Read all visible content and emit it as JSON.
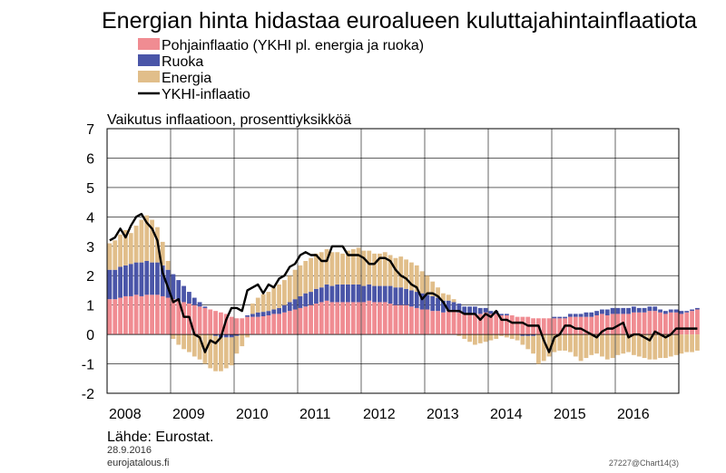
{
  "chart_data": {
    "type": "bar",
    "title": "Energian hinta hidastaa euroalueen kuluttajahintainflaatiota",
    "subtitle": "Vaikutus inflaatioon, prosenttiyksikköä",
    "ylim": [
      -2,
      7
    ],
    "yticks": [
      "7",
      "6",
      "5",
      "4",
      "3",
      "2",
      "1",
      "0",
      "-1",
      "-2"
    ],
    "xticks": [
      "2008",
      "2009",
      "2010",
      "2011",
      "2012",
      "2013",
      "2014",
      "2015",
      "2016"
    ],
    "start_year": 2008,
    "stacked": true,
    "colors": {
      "core": "#F08C92",
      "food": "#4A55A8",
      "energy": "#E1BE8A",
      "line": "#000000"
    },
    "legend": [
      {
        "name": "Pohjainflaatio (YKHI pl. energia ja ruoka)",
        "color": "#F08C92",
        "kind": "box"
      },
      {
        "name": "Ruoka",
        "color": "#4A55A8",
        "kind": "box"
      },
      {
        "name": "Energia",
        "color": "#E1BE8A",
        "kind": "box"
      },
      {
        "name": "YKHI-inflaatio",
        "color": "#000000",
        "kind": "line"
      }
    ],
    "series": {
      "core": [
        1.2,
        1.2,
        1.25,
        1.3,
        1.3,
        1.35,
        1.3,
        1.35,
        1.35,
        1.35,
        1.3,
        1.25,
        1.2,
        1.15,
        1.1,
        1.05,
        1.0,
        0.95,
        0.9,
        0.85,
        0.8,
        0.75,
        0.7,
        0.6,
        0.55,
        0.55,
        0.6,
        0.6,
        0.6,
        0.62,
        0.65,
        0.7,
        0.7,
        0.75,
        0.8,
        0.85,
        0.9,
        0.95,
        1.0,
        1.05,
        1.1,
        1.15,
        1.1,
        1.1,
        1.1,
        1.1,
        1.1,
        1.1,
        1.1,
        1.15,
        1.1,
        1.1,
        1.1,
        1.05,
        1.0,
        1.0,
        1.0,
        0.95,
        0.9,
        0.85,
        0.85,
        0.8,
        0.8,
        0.75,
        0.8,
        0.8,
        0.75,
        0.7,
        0.7,
        0.7,
        0.7,
        0.75,
        0.7,
        0.7,
        0.65,
        0.65,
        0.65,
        0.6,
        0.6,
        0.6,
        0.55,
        0.55,
        0.55,
        0.55,
        0.55,
        0.55,
        0.55,
        0.6,
        0.6,
        0.6,
        0.6,
        0.6,
        0.65,
        0.7,
        0.65,
        0.7,
        0.7,
        0.7,
        0.7,
        0.75,
        0.75,
        0.75,
        0.8,
        0.8,
        0.75,
        0.7,
        0.75,
        0.75,
        0.7,
        0.75,
        0.8,
        0.85
      ],
      "food": [
        1.0,
        1.0,
        1.05,
        1.05,
        1.1,
        1.1,
        1.15,
        1.15,
        1.1,
        1.1,
        1.05,
        0.95,
        0.85,
        0.7,
        0.55,
        0.4,
        0.25,
        0.15,
        0.05,
        0.0,
        -0.05,
        -0.1,
        -0.1,
        -0.1,
        -0.05,
        0.0,
        0.05,
        0.1,
        0.15,
        0.15,
        0.15,
        0.15,
        0.2,
        0.25,
        0.3,
        0.35,
        0.4,
        0.45,
        0.45,
        0.5,
        0.5,
        0.55,
        0.55,
        0.6,
        0.6,
        0.6,
        0.6,
        0.6,
        0.55,
        0.55,
        0.55,
        0.55,
        0.55,
        0.6,
        0.6,
        0.6,
        0.55,
        0.55,
        0.55,
        0.55,
        0.5,
        0.5,
        0.45,
        0.4,
        0.35,
        0.3,
        0.3,
        0.25,
        0.25,
        0.25,
        0.2,
        0.15,
        0.1,
        0.1,
        0.05,
        0.05,
        0.0,
        0.0,
        -0.05,
        -0.05,
        -0.05,
        0.0,
        0.0,
        0.0,
        0.05,
        0.05,
        0.05,
        0.1,
        0.1,
        0.1,
        0.15,
        0.15,
        0.15,
        0.15,
        0.2,
        0.2,
        0.2,
        0.2,
        0.2,
        0.2,
        0.15,
        0.15,
        0.15,
        0.15,
        0.1,
        0.1,
        0.1,
        0.1,
        0.1,
        0.05,
        0.05,
        0.05
      ],
      "energy": [
        0.9,
        1.0,
        1.1,
        1.2,
        1.05,
        1.25,
        1.45,
        1.55,
        1.45,
        1.2,
        0.8,
        0.3,
        -0.15,
        -0.35,
        -0.5,
        -0.6,
        -0.75,
        -0.85,
        -1.0,
        -1.15,
        -1.2,
        -1.15,
        -1.05,
        -0.95,
        -0.6,
        -0.4,
        -0.1,
        0.35,
        0.5,
        0.6,
        0.65,
        0.75,
        0.8,
        0.85,
        0.9,
        1.0,
        1.05,
        1.1,
        1.15,
        1.2,
        1.2,
        1.2,
        1.15,
        1.1,
        1.05,
        1.15,
        1.2,
        1.25,
        1.2,
        1.15,
        1.1,
        1.1,
        1.15,
        1.05,
        1.0,
        1.05,
        1.0,
        0.95,
        0.9,
        0.75,
        0.65,
        0.5,
        0.35,
        0.25,
        0.2,
        0.1,
        -0.05,
        -0.15,
        -0.25,
        -0.35,
        -0.3,
        -0.25,
        -0.2,
        -0.15,
        -0.05,
        -0.1,
        -0.15,
        -0.2,
        -0.3,
        -0.45,
        -0.6,
        -1.0,
        -0.9,
        -0.75,
        -0.6,
        -0.55,
        -0.55,
        -0.6,
        -0.75,
        -0.9,
        -0.8,
        -0.7,
        -0.65,
        -0.75,
        -0.85,
        -0.8,
        -0.7,
        -0.65,
        -0.6,
        -0.7,
        -0.75,
        -0.8,
        -0.85,
        -0.85,
        -0.8,
        -0.8,
        -0.75,
        -0.7,
        -0.65,
        -0.6,
        -0.6,
        -0.55
      ],
      "hicp": [
        3.2,
        3.3,
        3.6,
        3.3,
        3.7,
        4.0,
        4.1,
        3.8,
        3.6,
        3.2,
        2.1,
        1.6,
        1.1,
        1.2,
        0.6,
        0.6,
        0.0,
        -0.1,
        -0.6,
        -0.2,
        -0.3,
        -0.1,
        0.5,
        0.9,
        0.9,
        0.8,
        1.5,
        1.6,
        1.7,
        1.4,
        1.7,
        1.6,
        1.9,
        2.0,
        2.3,
        2.4,
        2.7,
        2.8,
        2.7,
        2.7,
        2.5,
        2.5,
        3.0,
        3.0,
        3.0,
        2.7,
        2.7,
        2.7,
        2.6,
        2.4,
        2.4,
        2.6,
        2.6,
        2.5,
        2.2,
        2.0,
        1.9,
        1.7,
        1.6,
        1.2,
        1.4,
        1.4,
        1.3,
        1.1,
        0.8,
        0.8,
        0.8,
        0.7,
        0.7,
        0.7,
        0.5,
        0.7,
        0.6,
        0.8,
        0.5,
        0.5,
        0.4,
        0.4,
        0.4,
        0.3,
        0.3,
        0.3,
        -0.2,
        -0.6,
        -0.1,
        0.0,
        0.3,
        0.3,
        0.2,
        0.2,
        0.1,
        0.0,
        -0.1,
        0.1,
        0.2,
        0.2,
        0.3,
        0.4,
        -0.1,
        0.0,
        0.0,
        -0.1,
        -0.2,
        0.1,
        0.0,
        -0.1,
        0.0,
        0.2,
        0.2,
        0.2,
        0.2,
        0.2
      ]
    }
  },
  "footer": {
    "source": "Lähde: Eurostat.",
    "date": "28.9.2016",
    "site": "eurojatalous.fi",
    "code": "27227@Chart14(3)"
  }
}
